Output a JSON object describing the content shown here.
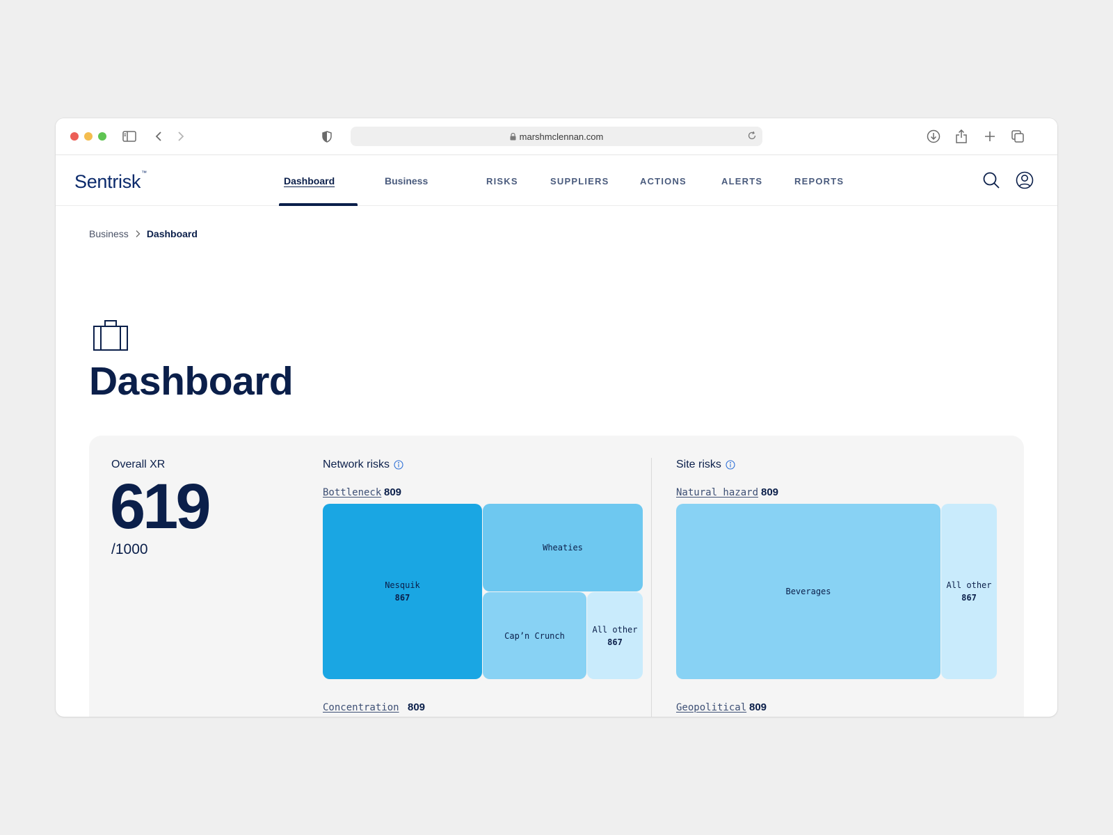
{
  "browser": {
    "url": "marshmclennan.com"
  },
  "app": {
    "logo": "Sentrisk",
    "logo_mark": "™",
    "nav": [
      {
        "label": "Dashboard"
      },
      {
        "label": "Business"
      },
      {
        "label": "RISKS"
      },
      {
        "label": "SUPPLIERS"
      },
      {
        "label": "ACTIONS"
      },
      {
        "label": "ALERTS"
      },
      {
        "label": "REPORTS"
      }
    ]
  },
  "breadcrumb": [
    "Business",
    "Dashboard"
  ],
  "page": {
    "title": "Dashboard",
    "icon": "briefcase-icon"
  },
  "overall": {
    "label": "Overall XR",
    "value": "619",
    "max": "/1000"
  },
  "network": {
    "title": "Network risks",
    "top_link": "Bottleneck",
    "top_value": "809",
    "tiles": [
      {
        "label": "Nesquik",
        "value": "867"
      },
      {
        "label": "Wheaties",
        "value": ""
      },
      {
        "label": "Cap’n Crunch",
        "value": ""
      },
      {
        "label": "All other",
        "value": "867"
      }
    ],
    "bottom_link": "Concentration",
    "bottom_value": "809"
  },
  "site": {
    "title": "Site risks",
    "top_link": "Natural hazard",
    "top_value": "809",
    "tiles": [
      {
        "label": "Beverages",
        "value": ""
      },
      {
        "label": "All other",
        "value": "867"
      }
    ],
    "bottom_link": "Geopolitical",
    "bottom_value": "809"
  },
  "colors": {
    "navy": "#0b1f4a",
    "tile_dark": "#1aa6e3",
    "tile_mid": "#6ec8f0",
    "tile_light": "#88d2f4",
    "tile_pale": "#c9ebfc"
  }
}
